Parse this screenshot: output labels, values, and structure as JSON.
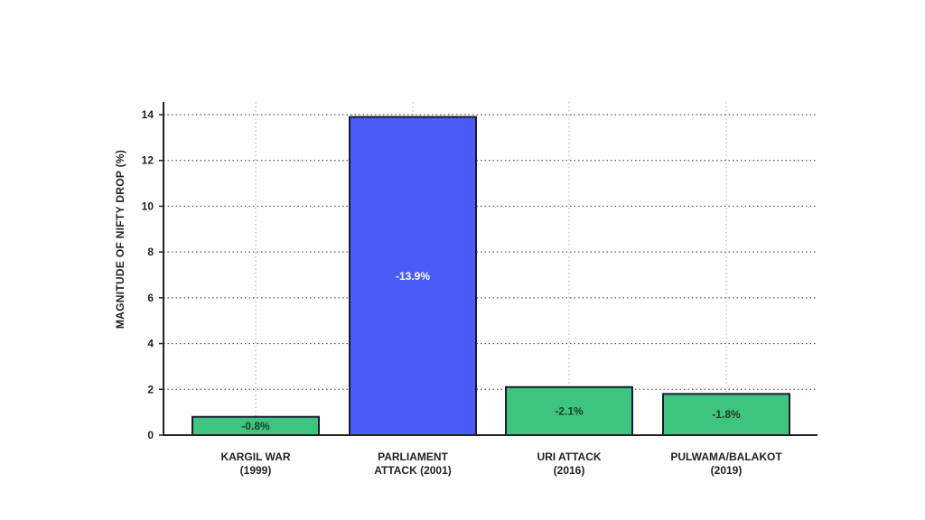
{
  "chart_data": {
    "type": "bar",
    "title": "",
    "xlabel": "",
    "ylabel": "MAGNITUDE OF NIFTY DROP (%)",
    "ylim": [
      0,
      14.4
    ],
    "yticks": [
      "0",
      "2",
      "4",
      "6",
      "8",
      "10",
      "12",
      "14"
    ],
    "grid": true,
    "categories": [
      [
        "KARGIL WAR",
        "(1999)"
      ],
      [
        "PARLIAMENT",
        "ATTACK (2001)"
      ],
      [
        "URI ATTACK",
        "(2016)"
      ],
      [
        "PULWAMA/BALAKOT",
        "(2019)"
      ]
    ],
    "values": [
      0.8,
      13.9,
      2.1,
      1.8
    ],
    "data_labels": [
      "-0.8%",
      "-13.9%",
      "-2.1%",
      "-1.8%"
    ],
    "colors": [
      "#3dc47e",
      "#4a5cf7",
      "#3dc47e",
      "#3dc47e"
    ],
    "label_colors": [
      "#1f3b2a",
      "#ffffff",
      "#1f3b2a",
      "#1f3b2a"
    ],
    "edge_color": "#1a1a2e"
  }
}
